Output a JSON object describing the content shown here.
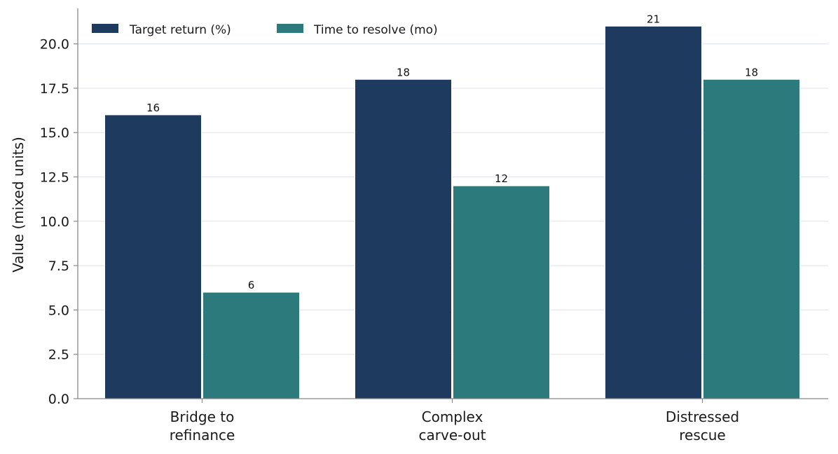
{
  "chart_data": {
    "type": "bar",
    "categories": [
      [
        "Bridge to",
        "refinance"
      ],
      [
        "Complex",
        "carve-out"
      ],
      [
        "Distressed",
        "rescue"
      ]
    ],
    "series": [
      {
        "name": "Target return (%)",
        "values": [
          16,
          18,
          21
        ],
        "color": "#1f3a5f"
      },
      {
        "name": "Time to resolve (mo)",
        "values": [
          6,
          12,
          18
        ],
        "color": "#2c7a7b"
      }
    ],
    "title": "",
    "xlabel": "",
    "ylabel": "Value (mixed units)",
    "ylim": [
      0,
      22
    ],
    "yticks": [
      "0.0",
      "2.5",
      "5.0",
      "7.5",
      "10.0",
      "12.5",
      "15.0",
      "17.5",
      "20.0"
    ],
    "grid": "horizontal",
    "legend": "top-left",
    "data_labels": true
  }
}
